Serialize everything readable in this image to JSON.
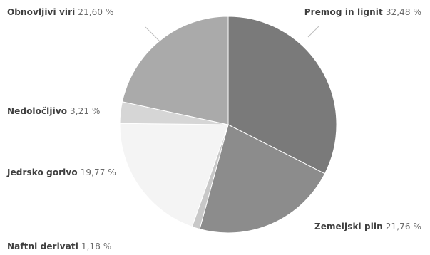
{
  "chart_data": {
    "type": "pie",
    "title": "",
    "unit": "%",
    "slices": [
      {
        "label": "Premog in lignit",
        "value": 32.48,
        "value_text": "32,48 %",
        "color": "#7a7a7a"
      },
      {
        "label": "Zemeljski plin",
        "value": 21.76,
        "value_text": "21,76 %",
        "color": "#8c8c8c"
      },
      {
        "label": "Naftni derivati",
        "value": 1.18,
        "value_text": "1,18 %",
        "color": "#c8c8c8"
      },
      {
        "label": "Jedrsko gorivo",
        "value": 19.77,
        "value_text": "19,77 %",
        "color": "#f4f4f4"
      },
      {
        "label": "Nedoločljivo",
        "value": 3.21,
        "value_text": "3,21 %",
        "color": "#d6d6d6"
      },
      {
        "label": "Obnovljivi viri",
        "value": 21.6,
        "value_text": "21,60 %",
        "color": "#aaaaaa"
      }
    ]
  }
}
